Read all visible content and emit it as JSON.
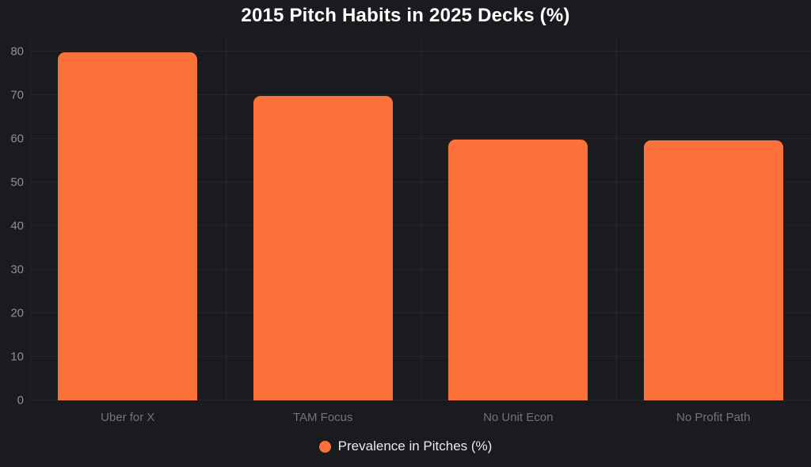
{
  "chart_data": {
    "type": "bar",
    "title": "2015 Pitch Habits in 2025 Decks (%)",
    "categories": [
      "Uber for X",
      "TAM Focus",
      "No Unit Econ",
      "No Profit Path"
    ],
    "series": [
      {
        "name": "Prevalence in Pitches (%)",
        "values": [
          79.7,
          69.7,
          59.7,
          59.6
        ]
      }
    ],
    "xlabel": "",
    "ylabel": "",
    "ylim": [
      0,
      80
    ],
    "yticks": [
      0,
      10,
      20,
      30,
      40,
      50,
      60,
      70,
      80
    ],
    "grid": true,
    "legend_position": "bottom",
    "legend_label": "Prevalence in Pitches (%)",
    "colors": {
      "bar": "#fb7139",
      "background": "#191b1f",
      "grid": "#24262b",
      "title_text": "#ffffff",
      "y_tick_text": "#8d9095",
      "x_tick_text": "#717479",
      "legend_text": "#e8e9ea"
    }
  }
}
